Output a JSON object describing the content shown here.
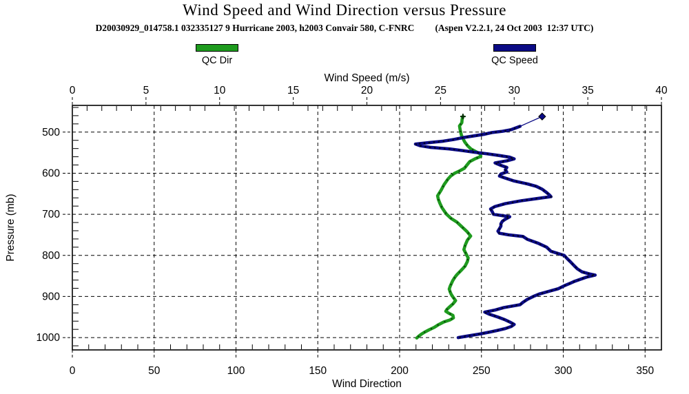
{
  "header": {
    "title": "Wind Speed and Wind Direction versus Pressure",
    "subtitle_left": "D20030929_014758.1 032335127 9 Hurricane 2003, h2003 Convair 580, C-FNRC",
    "subtitle_right": "(Aspen V2.2.1, 24 Oct 2003  12:37 UTC)"
  },
  "chart_data": {
    "type": "line",
    "title": "Wind Speed and Wind Direction versus Pressure",
    "plot": {
      "background": "#ffffff",
      "border_color": "#000000",
      "grid": "dashed"
    },
    "legend_position": "top",
    "axes": {
      "top": {
        "label": "Wind Speed (m/s)",
        "min": 0,
        "max": 40,
        "major_ticks": [
          0,
          5,
          10,
          15,
          20,
          25,
          30,
          35,
          40
        ],
        "minor_step": 1
      },
      "bottom": {
        "label": "Wind Direction",
        "min": 0,
        "max": 360,
        "major_ticks": [
          0,
          50,
          100,
          150,
          200,
          250,
          300,
          350
        ],
        "minor_step": 10
      },
      "left": {
        "label": "Pressure (mb)",
        "min": 435,
        "max": 1030,
        "inverted": true,
        "major_ticks": [
          500,
          600,
          700,
          800,
          900,
          1000
        ],
        "minor_step": 20
      }
    },
    "series": [
      {
        "name": "QC Dir",
        "color": "#1e9b1e",
        "marker_color": "#0a2a0a",
        "axis_x": "bottom",
        "units": "degrees",
        "start_marker": "plus",
        "points_pressure_value": [
          [
            462,
            238.7
          ],
          [
            469,
            238.2
          ],
          [
            477,
            238.0
          ],
          [
            485,
            236.6
          ],
          [
            492,
            236.9
          ],
          [
            500,
            237.3
          ],
          [
            508,
            237.8
          ],
          [
            515,
            238.6
          ],
          [
            524,
            239.8
          ],
          [
            533,
            241.5
          ],
          [
            541,
            243.6
          ],
          [
            547,
            246.3
          ],
          [
            553,
            249.3
          ],
          [
            559,
            249.6
          ],
          [
            565,
            246.0
          ],
          [
            572,
            242.8
          ],
          [
            580,
            241.2
          ],
          [
            588,
            239.6
          ],
          [
            594,
            236.8
          ],
          [
            600,
            233.7
          ],
          [
            607,
            231.2
          ],
          [
            615,
            229.4
          ],
          [
            628,
            227.1
          ],
          [
            641,
            225.4
          ],
          [
            655,
            223.2
          ],
          [
            664,
            223.7
          ],
          [
            673,
            224.6
          ],
          [
            684,
            225.9
          ],
          [
            694,
            227.6
          ],
          [
            700,
            228.7
          ],
          [
            710,
            231.4
          ],
          [
            719,
            235.0
          ],
          [
            731,
            238.2
          ],
          [
            742,
            241.2
          ],
          [
            753,
            243.4
          ],
          [
            763,
            241.4
          ],
          [
            775,
            240.1
          ],
          [
            786,
            239.3
          ],
          [
            796,
            240.6
          ],
          [
            806,
            241.9
          ],
          [
            815,
            241.4
          ],
          [
            826,
            240.0
          ],
          [
            833,
            238.4
          ],
          [
            840,
            236.7
          ],
          [
            847,
            235.0
          ],
          [
            853,
            233.8
          ],
          [
            861,
            232.5
          ],
          [
            868,
            231.7
          ],
          [
            875,
            230.9
          ],
          [
            882,
            230.3
          ],
          [
            889,
            230.9
          ],
          [
            895,
            231.6
          ],
          [
            902,
            232.7
          ],
          [
            910,
            234.2
          ],
          [
            918,
            232.6
          ],
          [
            925,
            230.6
          ],
          [
            931,
            229.0
          ],
          [
            936,
            228.2
          ],
          [
            941,
            230.2
          ],
          [
            946,
            232.6
          ],
          [
            952,
            232.9
          ],
          [
            957,
            230.8
          ],
          [
            962,
            227.0
          ],
          [
            969,
            223.6
          ],
          [
            975,
            221.2
          ],
          [
            981,
            218.0
          ],
          [
            987,
            215.2
          ],
          [
            992,
            213.2
          ],
          [
            997,
            211.6
          ],
          [
            1001,
            210.5
          ]
        ]
      },
      {
        "name": "QC Speed",
        "color": "#0b0b85",
        "marker_color": "#000014",
        "axis_x": "top",
        "units": "m/s",
        "flight_level_point": [
          462,
          31.9
        ],
        "start_marker": "diamond",
        "points_pressure_value": [
          [
            486,
            30.4
          ],
          [
            490,
            30.1
          ],
          [
            494,
            29.8
          ],
          [
            498,
            29.2
          ],
          [
            501,
            28.5
          ],
          [
            505,
            28.0
          ],
          [
            509,
            27.3
          ],
          [
            513,
            26.6
          ],
          [
            518,
            25.9
          ],
          [
            522,
            25.2
          ],
          [
            526,
            24.1
          ],
          [
            529,
            23.3
          ],
          [
            533,
            23.6
          ],
          [
            537,
            24.3
          ],
          [
            541,
            25.6
          ],
          [
            545,
            26.5
          ],
          [
            549,
            27.3
          ],
          [
            553,
            28.2
          ],
          [
            557,
            29.0
          ],
          [
            561,
            29.7
          ],
          [
            565,
            30.0
          ],
          [
            570,
            29.5
          ],
          [
            575,
            28.7
          ],
          [
            581,
            29.1
          ],
          [
            586,
            29.5
          ],
          [
            592,
            29.4
          ],
          [
            597,
            29.5
          ],
          [
            602,
            29.1
          ],
          [
            607,
            29.0
          ],
          [
            612,
            29.4
          ],
          [
            619,
            30.0
          ],
          [
            626,
            30.9
          ],
          [
            632,
            31.5
          ],
          [
            639,
            31.9
          ],
          [
            647,
            32.2
          ],
          [
            653,
            32.4
          ],
          [
            657,
            32.5
          ],
          [
            661,
            31.7
          ],
          [
            667,
            30.5
          ],
          [
            674,
            29.4
          ],
          [
            681,
            28.7
          ],
          [
            687,
            28.4
          ],
          [
            693,
            28.5
          ],
          [
            700,
            28.6
          ],
          [
            706,
            29.7
          ],
          [
            712,
            29.4
          ],
          [
            717,
            29.2
          ],
          [
            723,
            29.1
          ],
          [
            729,
            29.1
          ],
          [
            735,
            29.0
          ],
          [
            741,
            28.9
          ],
          [
            746,
            29.0
          ],
          [
            750,
            29.6
          ],
          [
            754,
            30.6
          ],
          [
            761,
            30.9
          ],
          [
            770,
            31.6
          ],
          [
            780,
            32.2
          ],
          [
            790,
            32.5
          ],
          [
            800,
            33.4
          ],
          [
            808,
            33.6
          ],
          [
            815,
            33.8
          ],
          [
            826,
            34.1
          ],
          [
            833,
            34.3
          ],
          [
            840,
            34.6
          ],
          [
            845,
            35.1
          ],
          [
            848,
            35.5
          ],
          [
            853,
            34.9
          ],
          [
            858,
            34.5
          ],
          [
            863,
            34.1
          ],
          [
            868,
            33.8
          ],
          [
            874,
            33.4
          ],
          [
            881,
            33.0
          ],
          [
            887,
            32.4
          ],
          [
            894,
            31.7
          ],
          [
            900,
            31.3
          ],
          [
            907,
            30.9
          ],
          [
            914,
            30.6
          ],
          [
            920,
            30.4
          ],
          [
            927,
            29.3
          ],
          [
            933,
            28.7
          ],
          [
            938,
            28.0
          ],
          [
            943,
            28.3
          ],
          [
            950,
            28.9
          ],
          [
            957,
            29.4
          ],
          [
            962,
            29.7
          ],
          [
            968,
            30.0
          ],
          [
            973,
            29.8
          ],
          [
            978,
            29.4
          ],
          [
            983,
            28.8
          ],
          [
            987,
            28.3
          ],
          [
            991,
            27.7
          ],
          [
            994,
            27.2
          ],
          [
            997,
            26.7
          ],
          [
            1000,
            26.2
          ]
        ]
      }
    ]
  }
}
